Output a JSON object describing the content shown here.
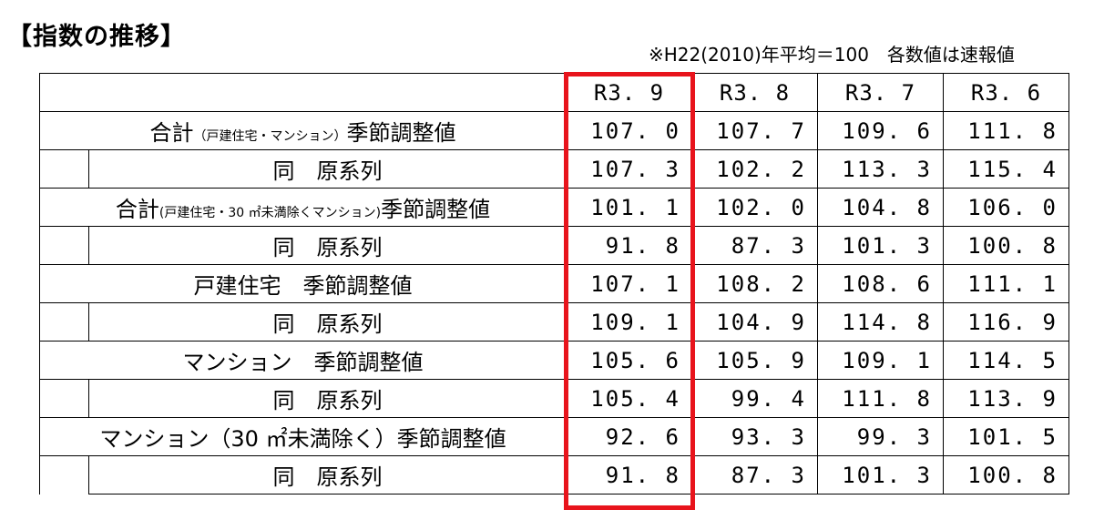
{
  "title": "【指数の推移】",
  "note": "※H22(2010)年平均＝100　各数値は速報値",
  "header": {
    "label": "",
    "cols": [
      "R3. 9",
      "R3. 8",
      "R3. 7",
      "R3. 6"
    ]
  },
  "rows": [
    {
      "main": {
        "prefix": "合計",
        "paren": "（戸建住宅・マンション）",
        "suffix": "季節調整値",
        "values": [
          "107. 0",
          "107. 7",
          "109. 6",
          "111. 8"
        ]
      },
      "sub": {
        "label": "同　原系列",
        "values": [
          "107. 3",
          "102. 2",
          "113. 3",
          "115. 4"
        ]
      }
    },
    {
      "main": {
        "prefix": "合計",
        "paren": "(戸建住宅・30 ㎡未満除くマンション)",
        "suffix": "季節調整値",
        "values": [
          "101. 1",
          "102. 0",
          "104. 8",
          "106. 0"
        ]
      },
      "sub": {
        "label": "同　原系列",
        "values": [
          "91. 8",
          "87. 3",
          "101. 3",
          "100. 8"
        ]
      }
    },
    {
      "main": {
        "prefix": "戸建住宅　季節調整値",
        "paren": "",
        "suffix": "",
        "values": [
          "107. 1",
          "108. 2",
          "108. 6",
          "111. 1"
        ]
      },
      "sub": {
        "label": "同　原系列",
        "values": [
          "109. 1",
          "104. 9",
          "114. 8",
          "116. 9"
        ]
      }
    },
    {
      "main": {
        "prefix": "マンション　季節調整値",
        "paren": "",
        "suffix": "",
        "values": [
          "105. 6",
          "105. 9",
          "109. 1",
          "114. 5"
        ]
      },
      "sub": {
        "label": "同　原系列",
        "values": [
          "105. 4",
          "99. 4",
          "111. 8",
          "113. 9"
        ]
      }
    },
    {
      "main": {
        "prefix": "マンション（30 ㎡未満除く）季節調整値",
        "paren": "",
        "suffix": "",
        "values": [
          "92. 6",
          "93. 3",
          "99. 3",
          "101. 5"
        ]
      },
      "sub": {
        "label": "同　原系列",
        "values": [
          "91. 8",
          "87. 3",
          "101. 3",
          "100. 8"
        ]
      }
    }
  ],
  "highlight_color": "#e8141c"
}
